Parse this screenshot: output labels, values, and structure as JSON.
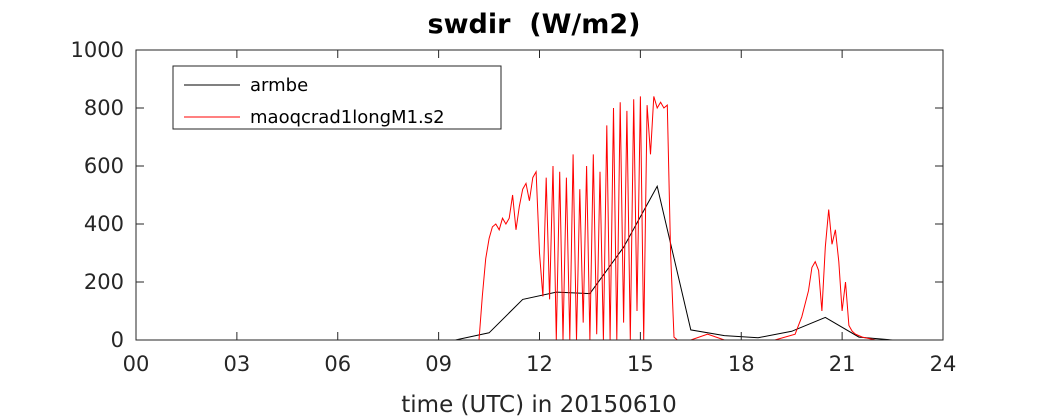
{
  "chart_data": {
    "type": "line",
    "title": "swdir  (W/m2)",
    "xlabel": "time (UTC) in 20150610",
    "ylabel": "",
    "xlim": [
      0,
      24
    ],
    "ylim": [
      0,
      1000
    ],
    "x_ticks": [
      0,
      3,
      6,
      9,
      12,
      15,
      18,
      21,
      24
    ],
    "x_tick_labels": [
      "00",
      "03",
      "06",
      "09",
      "12",
      "15",
      "18",
      "21",
      "24"
    ],
    "y_ticks": [
      0,
      200,
      400,
      600,
      800,
      1000
    ],
    "y_tick_labels": [
      "0",
      "200",
      "400",
      "600",
      "800",
      "1000"
    ],
    "grid": false,
    "legend_placement": "top-left",
    "series": [
      {
        "name": "armbe",
        "color": "#000000",
        "x": [
          0,
          1,
          2,
          3,
          4,
          5,
          6,
          7,
          8,
          9,
          9.5,
          10.5,
          11.5,
          12.5,
          13.5,
          14.5,
          15.5,
          16.5,
          17.5,
          18.5,
          19.5,
          20.5,
          21.5,
          22.5,
          23.5,
          24
        ],
        "y": [
          0,
          0,
          0,
          0,
          0,
          0,
          0,
          0,
          0,
          0,
          0,
          25,
          140,
          165,
          160,
          320,
          530,
          35,
          15,
          8,
          30,
          78,
          10,
          0,
          0,
          0
        ]
      },
      {
        "name": "maoqcrad1longM1.s2",
        "color": "#ff0000",
        "x": [
          0,
          10.2,
          10.3,
          10.4,
          10.5,
          10.6,
          10.7,
          10.8,
          10.9,
          11.0,
          11.1,
          11.2,
          11.3,
          11.4,
          11.5,
          11.6,
          11.7,
          11.8,
          11.9,
          12.0,
          12.1,
          12.2,
          12.3,
          12.4,
          12.5,
          12.6,
          12.7,
          12.8,
          12.9,
          13.0,
          13.1,
          13.2,
          13.3,
          13.4,
          13.5,
          13.6,
          13.7,
          13.8,
          13.9,
          14.0,
          14.1,
          14.2,
          14.3,
          14.4,
          14.5,
          14.6,
          14.7,
          14.8,
          14.9,
          15.0,
          15.1,
          15.2,
          15.3,
          15.4,
          15.5,
          15.6,
          15.7,
          15.8,
          15.9,
          16.0,
          16.1,
          16.2,
          16.3,
          16.5,
          17.0,
          17.5,
          18.0,
          19.0,
          19.6,
          19.8,
          20.0,
          20.1,
          20.2,
          20.3,
          20.4,
          20.5,
          20.6,
          20.7,
          20.8,
          20.9,
          21.0,
          21.1,
          21.2,
          21.3,
          21.4,
          21.6,
          22.0,
          24
        ],
        "y": [
          0,
          0,
          150,
          280,
          350,
          390,
          400,
          380,
          420,
          400,
          420,
          500,
          380,
          460,
          520,
          540,
          480,
          560,
          580,
          300,
          150,
          560,
          140,
          600,
          0,
          580,
          0,
          560,
          0,
          640,
          0,
          520,
          60,
          600,
          0,
          640,
          20,
          580,
          0,
          740,
          0,
          800,
          0,
          820,
          60,
          790,
          0,
          830,
          100,
          840,
          0,
          810,
          640,
          840,
          800,
          820,
          800,
          810,
          300,
          10,
          0,
          0,
          0,
          0,
          20,
          0,
          0,
          0,
          20,
          80,
          170,
          250,
          270,
          240,
          100,
          320,
          450,
          330,
          380,
          270,
          100,
          200,
          50,
          30,
          20,
          10,
          0,
          0
        ]
      }
    ]
  }
}
